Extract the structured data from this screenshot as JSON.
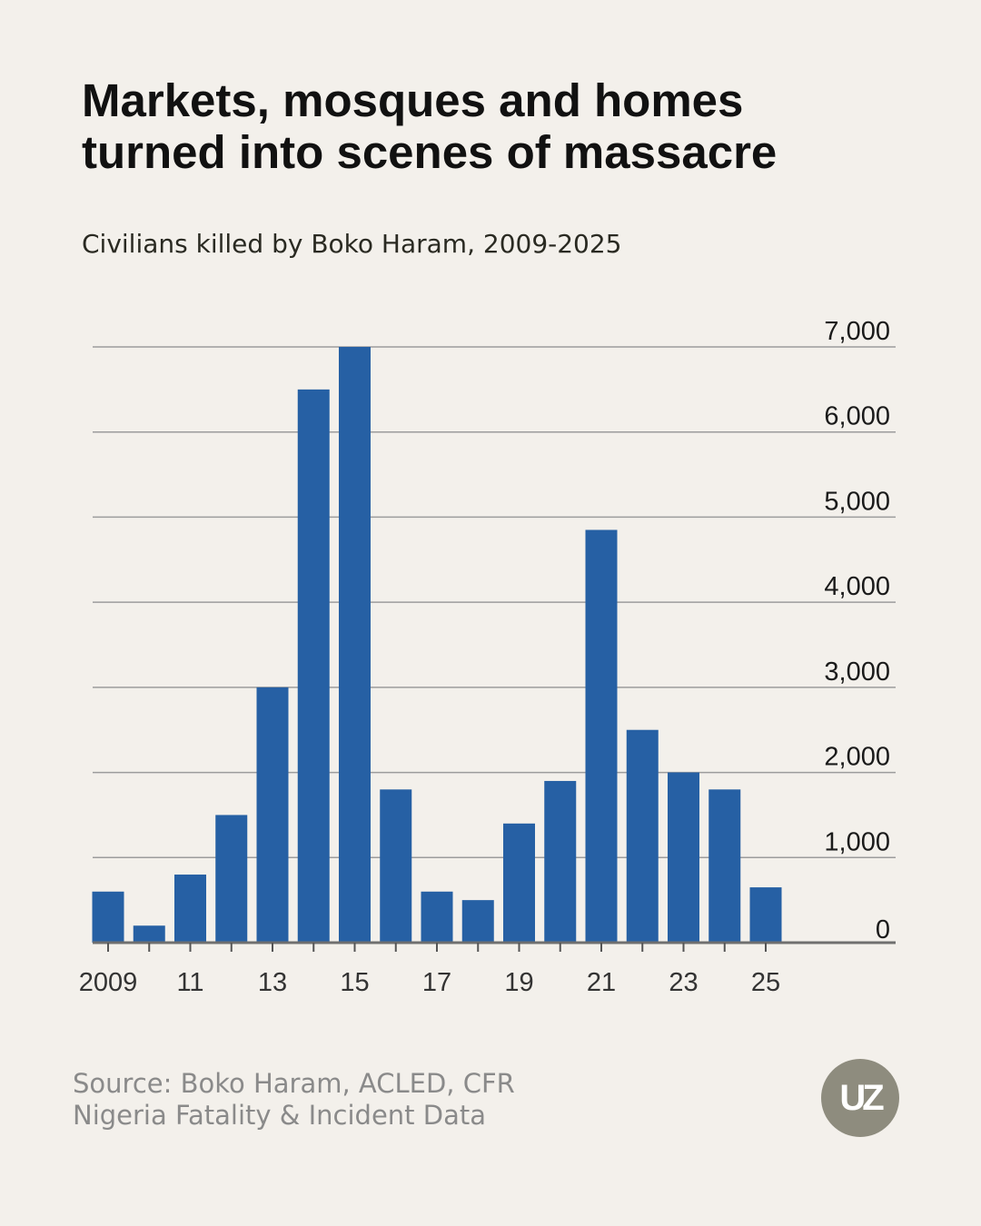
{
  "title": "Markets, mosques and homes turned into scenes of massacre",
  "subtitle": "Civilians killed by Boko Haram, 2009-2025",
  "source": {
    "line1": "Source: Boko Haram, ACLED, CFR",
    "line2": "Nigeria Fatality & Incident Data"
  },
  "logo": {
    "text": "UZ"
  },
  "colors": {
    "bar": "#2660a4",
    "background": "#f3f0eb",
    "grid": "#9c9c9c",
    "logo": "#8e8c7e"
  },
  "chart_data": {
    "type": "bar",
    "title": "Civilians killed by Boko Haram, 2009-2025",
    "xlabel": "",
    "ylabel": "",
    "categories": [
      "2009",
      "2010",
      "2011",
      "2012",
      "2013",
      "2014",
      "2015",
      "2016",
      "2017",
      "2018",
      "2019",
      "2020",
      "2021",
      "2022",
      "2023",
      "2024",
      "2025"
    ],
    "values": [
      600,
      200,
      800,
      1500,
      3000,
      6500,
      7000,
      1800,
      600,
      500,
      1400,
      1900,
      4850,
      2500,
      2000,
      1800,
      650
    ],
    "x_tick_labels": [
      "2009",
      "",
      "11",
      "",
      "13",
      "",
      "15",
      "",
      "17",
      "",
      "19",
      "",
      "21",
      "",
      "23",
      "",
      "25"
    ],
    "y_ticks": [
      0,
      1000,
      2000,
      3000,
      4000,
      5000,
      6000,
      7000
    ],
    "y_tick_labels": [
      "0",
      "1,000",
      "2,000",
      "3,000",
      "4,000",
      "5,000",
      "6,000",
      "7,000"
    ],
    "ylim": [
      0,
      7000
    ],
    "grid": true,
    "y_axis_position": "right"
  }
}
